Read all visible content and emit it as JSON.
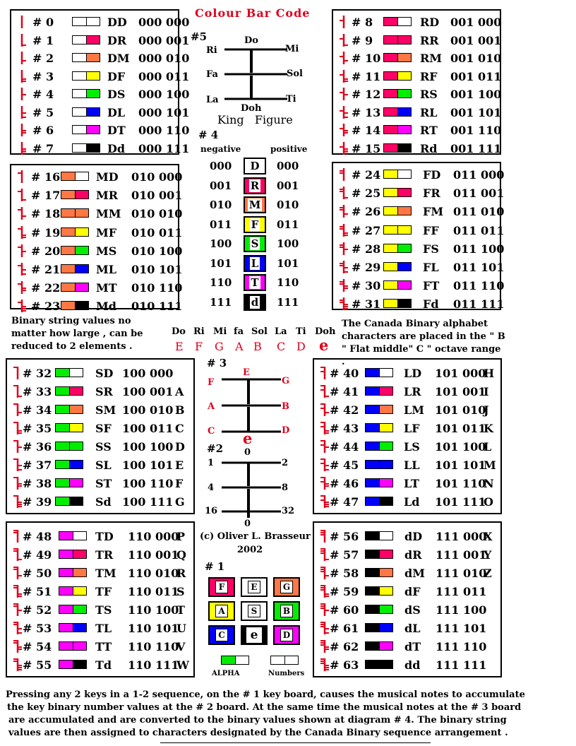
{
  "page_title": "Colour Bar Code",
  "colors": {
    "D": "#ffffff",
    "R": "#ff0066",
    "M": "#ff7744",
    "F": "#ffff00",
    "S": "#00ee00",
    "L": "#0000ff",
    "T": "#ff00ff",
    "d": "#000000",
    "accent": "#e0001b"
  },
  "tables": [
    {
      "rows": [
        [
          "# 0",
          "D",
          "D",
          "DD",
          "000 000"
        ],
        [
          "# 1",
          "D",
          "R",
          "DR",
          "000 001"
        ],
        [
          "# 2",
          "D",
          "M",
          "DM",
          "000 010"
        ],
        [
          "# 3",
          "D",
          "F",
          "DF",
          "000 011"
        ],
        [
          "# 4",
          "D",
          "S",
          "DS",
          "000 100"
        ],
        [
          "# 5",
          "D",
          "L",
          "DL",
          "000 101"
        ],
        [
          "# 6",
          "D",
          "T",
          "DT",
          "000 110"
        ],
        [
          "# 7",
          "D",
          "d",
          "Dd",
          "000 111"
        ]
      ]
    },
    {
      "rows": [
        [
          "# 8",
          "R",
          "D",
          "RD",
          "001 000"
        ],
        [
          "# 9",
          "R",
          "R",
          "RR",
          "001 001"
        ],
        [
          "# 10",
          "R",
          "M",
          "RM",
          "001 010"
        ],
        [
          "# 11",
          "R",
          "F",
          "RF",
          "001 011"
        ],
        [
          "# 12",
          "R",
          "S",
          "RS",
          "001 100"
        ],
        [
          "# 13",
          "R",
          "L",
          "RL",
          "001 101"
        ],
        [
          "# 14",
          "R",
          "T",
          "RT",
          "001 110"
        ],
        [
          "# 15",
          "R",
          "d",
          "Rd",
          "001 111"
        ]
      ]
    },
    {
      "rows": [
        [
          "# 16",
          "M",
          "D",
          "MD",
          "010 000"
        ],
        [
          "# 17",
          "M",
          "R",
          "MR",
          "010 001"
        ],
        [
          "# 18",
          "M",
          "M",
          "MM",
          "010 010"
        ],
        [
          "# 19",
          "M",
          "F",
          "MF",
          "010 011"
        ],
        [
          "# 20",
          "M",
          "S",
          "MS",
          "010 100"
        ],
        [
          "# 21",
          "M",
          "L",
          "ML",
          "010 101"
        ],
        [
          "# 22",
          "M",
          "T",
          "MT",
          "010 110"
        ],
        [
          "# 23",
          "M",
          "d",
          "Md",
          "010 111"
        ]
      ]
    },
    {
      "rows": [
        [
          "# 24",
          "F",
          "D",
          "FD",
          "011 000"
        ],
        [
          "# 25",
          "F",
          "R",
          "FR",
          "011 001"
        ],
        [
          "# 26",
          "F",
          "M",
          "FM",
          "011 010"
        ],
        [
          "# 27",
          "F",
          "F",
          "FF",
          "011 011"
        ],
        [
          "# 28",
          "F",
          "S",
          "FS",
          "011 100"
        ],
        [
          "# 29",
          "F",
          "L",
          "FL",
          "011 101"
        ],
        [
          "# 30",
          "F",
          "T",
          "FT",
          "011 110"
        ],
        [
          "# 31",
          "F",
          "d",
          "Fd",
          "011 111"
        ]
      ]
    },
    {
      "rows": [
        [
          "# 32",
          "S",
          "D",
          "SD",
          "100 000",
          ""
        ],
        [
          "# 33",
          "S",
          "R",
          "SR",
          "100 001",
          "A"
        ],
        [
          "# 34",
          "S",
          "M",
          "SM",
          "100 010",
          "B"
        ],
        [
          "# 35",
          "S",
          "F",
          "SF",
          "100 011",
          "C"
        ],
        [
          "# 36",
          "S",
          "S",
          "SS",
          "100 100",
          "D"
        ],
        [
          "# 37",
          "S",
          "L",
          "SL",
          "100 101",
          "E"
        ],
        [
          "# 38",
          "S",
          "T",
          "ST",
          "100 110",
          "F"
        ],
        [
          "# 39",
          "S",
          "d",
          "Sd",
          "100 111",
          "G"
        ]
      ]
    },
    {
      "rows": [
        [
          "# 40",
          "L",
          "D",
          "LD",
          "101 000",
          "H"
        ],
        [
          "# 41",
          "L",
          "R",
          "LR",
          "101 001",
          "I"
        ],
        [
          "# 42",
          "L",
          "M",
          "LM",
          "101 010",
          "J"
        ],
        [
          "# 43",
          "L",
          "F",
          "LF",
          "101 011",
          "K"
        ],
        [
          "# 44",
          "L",
          "S",
          "LS",
          "101 100",
          "L"
        ],
        [
          "# 45",
          "L",
          "L",
          "LL",
          "101 101",
          "M"
        ],
        [
          "# 46",
          "L",
          "T",
          "LT",
          "101 110",
          "N"
        ],
        [
          "# 47",
          "L",
          "d",
          "Ld",
          "101 111",
          "O"
        ]
      ]
    },
    {
      "rows": [
        [
          "# 48",
          "T",
          "D",
          "TD",
          "110 000",
          "P"
        ],
        [
          "# 49",
          "T",
          "R",
          "TR",
          "110 001",
          "Q"
        ],
        [
          "# 50",
          "T",
          "M",
          "TM",
          "110 010",
          "R"
        ],
        [
          "# 51",
          "T",
          "F",
          "TF",
          "110 011",
          "S"
        ],
        [
          "# 52",
          "T",
          "S",
          "TS",
          "110 100",
          "T"
        ],
        [
          "# 53",
          "T",
          "L",
          "TL",
          "110 101",
          "U"
        ],
        [
          "# 54",
          "T",
          "T",
          "TT",
          "110 110",
          "V"
        ],
        [
          "# 55",
          "T",
          "d",
          "Td",
          "110 111",
          "W"
        ]
      ]
    },
    {
      "rows": [
        [
          "# 56",
          "d",
          "D",
          "dD",
          "111 000",
          "X"
        ],
        [
          "# 57",
          "d",
          "R",
          "dR",
          "111 001",
          "Y"
        ],
        [
          "# 58",
          "d",
          "M",
          "dM",
          "111 010",
          "Z"
        ],
        [
          "# 59",
          "d",
          "F",
          "dF",
          "111 011",
          ""
        ],
        [
          "# 60",
          "d",
          "S",
          "dS",
          "111 100",
          ""
        ],
        [
          "# 61",
          "d",
          "L",
          "dL",
          "111 101",
          ""
        ],
        [
          "# 62",
          "d",
          "T",
          "dT",
          "111 110",
          ""
        ],
        [
          "# 63",
          "d",
          "d",
          "dd",
          "111 111",
          ""
        ]
      ]
    }
  ],
  "king_figure": {
    "label": "#5",
    "caption": "King   Figure",
    "notes": [
      "Do",
      "Ri",
      "Mi",
      "Fa",
      "Sol",
      "La",
      "Ti",
      "Doh"
    ]
  },
  "diagram4": {
    "label": "# 4",
    "negative": "negative",
    "positive": "positive",
    "rows": [
      [
        "000",
        "D",
        "D",
        "000"
      ],
      [
        "001",
        "R",
        "R",
        "001"
      ],
      [
        "010",
        "M",
        "M",
        "010"
      ],
      [
        "011",
        "F",
        "F",
        "011"
      ],
      [
        "100",
        "S",
        "S",
        "100"
      ],
      [
        "101",
        "L",
        "L",
        "101"
      ],
      [
        "110",
        "T",
        "T",
        "110"
      ],
      [
        "111",
        "d",
        "d",
        "111"
      ]
    ]
  },
  "binary_note": "Binary string values no matter how large , can be reduced to 2 elements .",
  "canada_note": "The Canada Binary alphabet characters are placed in the \" B \" Flat middle\" C \" octave range .",
  "solfege": [
    "Do",
    "Ri",
    "Mi",
    "fa",
    "Sol",
    "La",
    "Ti",
    "Doh"
  ],
  "letters": [
    "E",
    "F",
    "G",
    "A",
    "B",
    "C",
    "D",
    "e"
  ],
  "diagram3": {
    "label": "# 3",
    "top": "E",
    "left": [
      "F",
      "A",
      "C"
    ],
    "right": [
      "G",
      "B",
      "D"
    ],
    "bottom": "e"
  },
  "diagram2": {
    "label": "#2",
    "top": "0",
    "left": [
      "1",
      "4",
      "16"
    ],
    "right": [
      "2",
      "8",
      "32"
    ],
    "bottom": "0"
  },
  "copyright": "(c) Oliver L. Brasseur",
  "year": "2002",
  "keyboard": {
    "label": "# 1",
    "keys": [
      "F",
      "E",
      "G",
      "A",
      "S",
      "B",
      "C",
      "e",
      "D"
    ],
    "alpha": "ALPHA",
    "numbers": "Numbers"
  },
  "footer": [
    "Pressing any 2 keys in a 1-2 sequence, on the # 1 key board, causes the musical notes to accumulate",
    "the key binary number values at the # 2 board.  At the same time the musical notes at the # 3 board",
    "are accumulated and are converted to the binary values shown at diagram # 4.  The binary string",
    "values are then assigned to characters designated by the Canada Binary sequence arrangement ."
  ]
}
